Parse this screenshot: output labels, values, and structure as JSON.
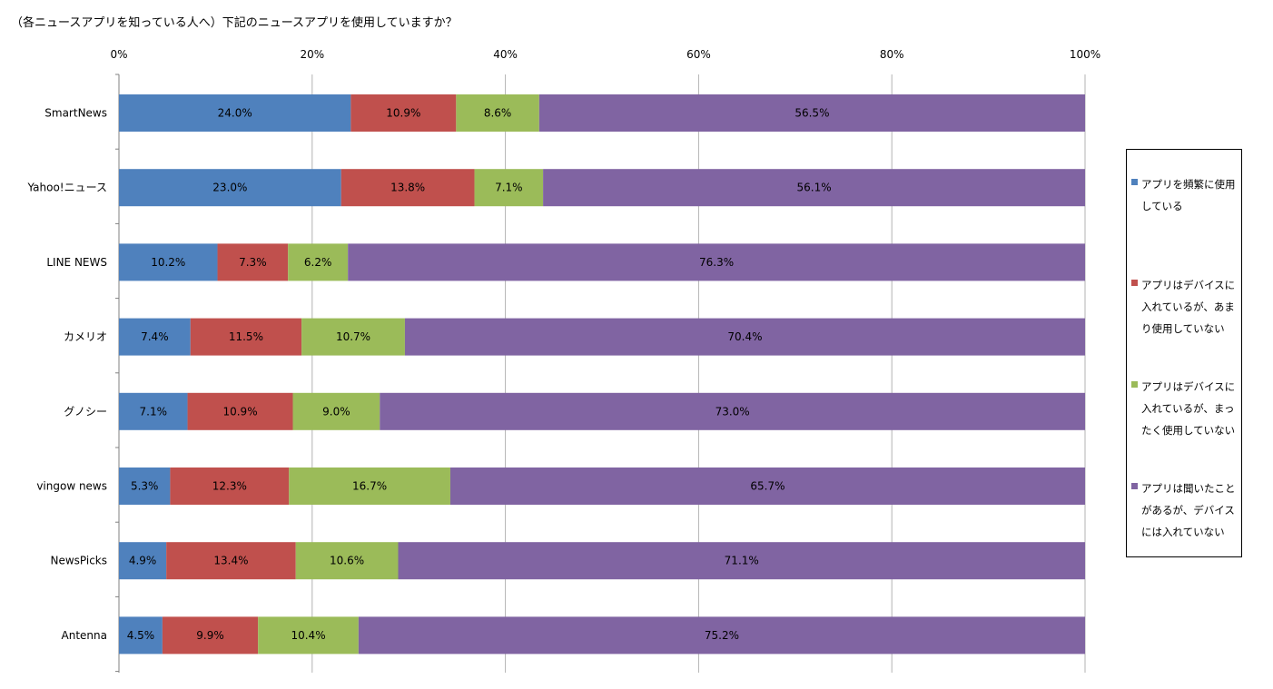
{
  "title": "（各ニュースアプリを知っている人へ）下記のニュースアプリを使用していますか？",
  "chart_data": {
    "type": "bar",
    "orientation": "horizontal",
    "stacked": "percent",
    "title": "（各ニュースアプリを知っている人へ）下記のニュースアプリを使用していますか？",
    "xlim": [
      0,
      100
    ],
    "x_ticks": [
      "0%",
      "20%",
      "40%",
      "60%",
      "80%",
      "100%"
    ],
    "x_tick_values": [
      0,
      20,
      40,
      60,
      80,
      100
    ],
    "x_axis_position": "top",
    "grid": true,
    "legend_position": "right",
    "categories": [
      "SmartNews",
      "Yahoo!ニュース",
      "LINE NEWS",
      "カメリオ",
      "グノシー",
      "vingow news",
      "NewsPicks",
      "Antenna"
    ],
    "series": [
      {
        "name": "アプリを頻繁に使用している",
        "color": "#4F81BD",
        "values": [
          24.0,
          23.0,
          10.2,
          7.4,
          7.1,
          5.3,
          4.9,
          4.5
        ],
        "labels": [
          "24.0%",
          "23.0%",
          "10.2%",
          "7.4%",
          "7.1%",
          "5.3%",
          "4.9%",
          "4.5%"
        ]
      },
      {
        "name": "アプリはデバイスに入れているが、あまり使用していない",
        "color": "#C0504D",
        "values": [
          10.9,
          13.8,
          7.3,
          11.5,
          10.9,
          12.3,
          13.4,
          9.9
        ],
        "labels": [
          "10.9%",
          "13.8%",
          "7.3%",
          "11.5%",
          "10.9%",
          "12.3%",
          "13.4%",
          "9.9%"
        ]
      },
      {
        "name": "アプリはデバイスに入れているが、まったく使用していない",
        "color": "#9BBB59",
        "values": [
          8.6,
          7.1,
          6.2,
          10.7,
          9.0,
          16.7,
          10.6,
          10.4
        ],
        "labels": [
          "8.6%",
          "7.1%",
          "6.2%",
          "10.7%",
          "9.0%",
          "16.7%",
          "10.6%",
          "10.4%"
        ]
      },
      {
        "name": "アプリは聞いたことがあるが、デバイスには入れていない",
        "color": "#8064A2",
        "values": [
          56.5,
          56.1,
          76.3,
          70.4,
          73.0,
          65.7,
          71.1,
          75.2
        ],
        "labels": [
          "56.5%",
          "56.1%",
          "76.3%",
          "70.4%",
          "73.0%",
          "65.7%",
          "71.1%",
          "75.2%"
        ]
      }
    ]
  }
}
